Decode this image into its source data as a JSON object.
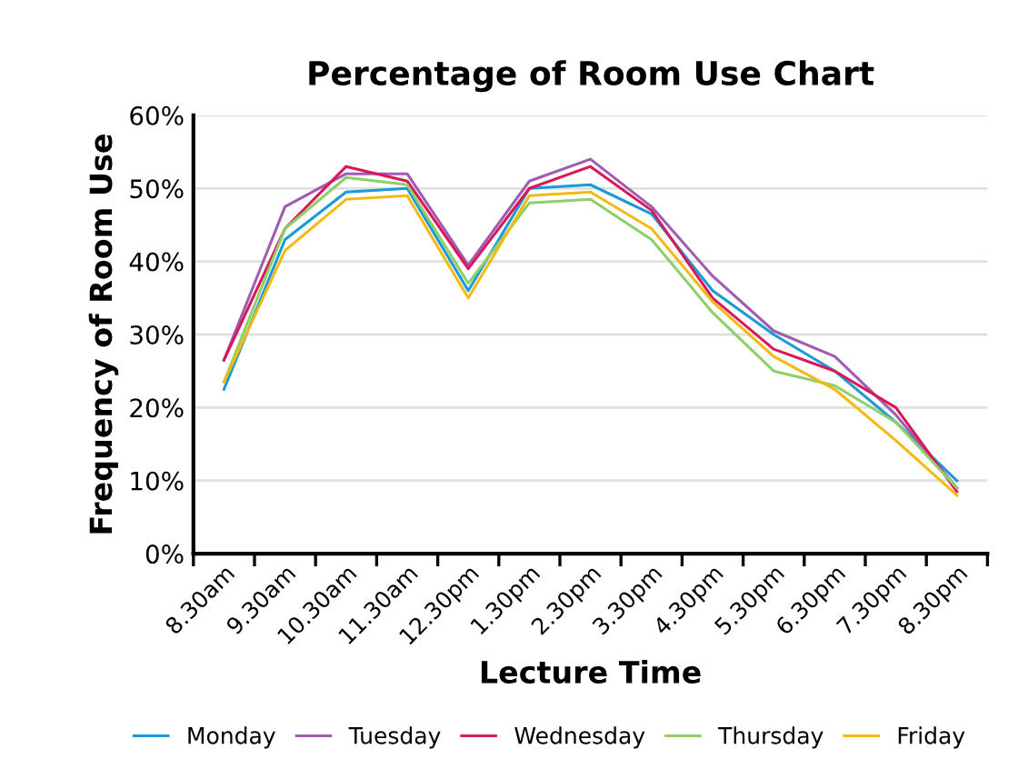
{
  "chart_data": {
    "type": "line",
    "title": "Percentage of Room Use Chart",
    "xlabel": "Lecture Time",
    "ylabel": "Frequency of Room Use",
    "categories": [
      "8.30am",
      "9.30am",
      "10.30am",
      "11.30am",
      "12.30pm",
      "1.30pm",
      "2.30pm",
      "3.30pm",
      "4.30pm",
      "5.30pm",
      "6.30pm",
      "7.30pm",
      "8.30pm"
    ],
    "series": [
      {
        "name": "Monday",
        "color": "#1a9ad6",
        "values": [
          22.5,
          43,
          49.5,
          50,
          36,
          50,
          50.5,
          46.5,
          36,
          30,
          25,
          18,
          10
        ]
      },
      {
        "name": "Tuesday",
        "color": "#a05cb0",
        "values": [
          26.5,
          47.5,
          52,
          52,
          39.5,
          51,
          54,
          47.5,
          38,
          30.5,
          27,
          19,
          9
        ]
      },
      {
        "name": "Wednesday",
        "color": "#d8185a",
        "values": [
          26.5,
          44.5,
          53,
          51,
          39,
          50,
          53,
          47,
          35,
          28,
          25,
          20,
          8.5
        ]
      },
      {
        "name": "Thursday",
        "color": "#8fcf6a",
        "values": [
          23.5,
          44.5,
          51.5,
          50.5,
          37,
          48,
          48.5,
          43,
          33,
          25,
          23,
          18,
          9
        ]
      },
      {
        "name": "Friday",
        "color": "#f5b915",
        "values": [
          23.5,
          41.5,
          48.5,
          49,
          35,
          49,
          49.5,
          44.5,
          34.5,
          27,
          22.5,
          15.5,
          8
        ]
      }
    ],
    "ylim": [
      0,
      60
    ],
    "yticks": [
      {
        "value": 0,
        "label": "0%"
      },
      {
        "value": 10,
        "label": "10%"
      },
      {
        "value": 20,
        "label": "20%"
      },
      {
        "value": 30,
        "label": "30%"
      },
      {
        "value": 40,
        "label": "40%"
      },
      {
        "value": 50,
        "label": "50%"
      },
      {
        "value": 60,
        "label": "60%"
      }
    ],
    "grid": "y",
    "legend": "bottom",
    "marker": "none",
    "line_style": "solid"
  }
}
